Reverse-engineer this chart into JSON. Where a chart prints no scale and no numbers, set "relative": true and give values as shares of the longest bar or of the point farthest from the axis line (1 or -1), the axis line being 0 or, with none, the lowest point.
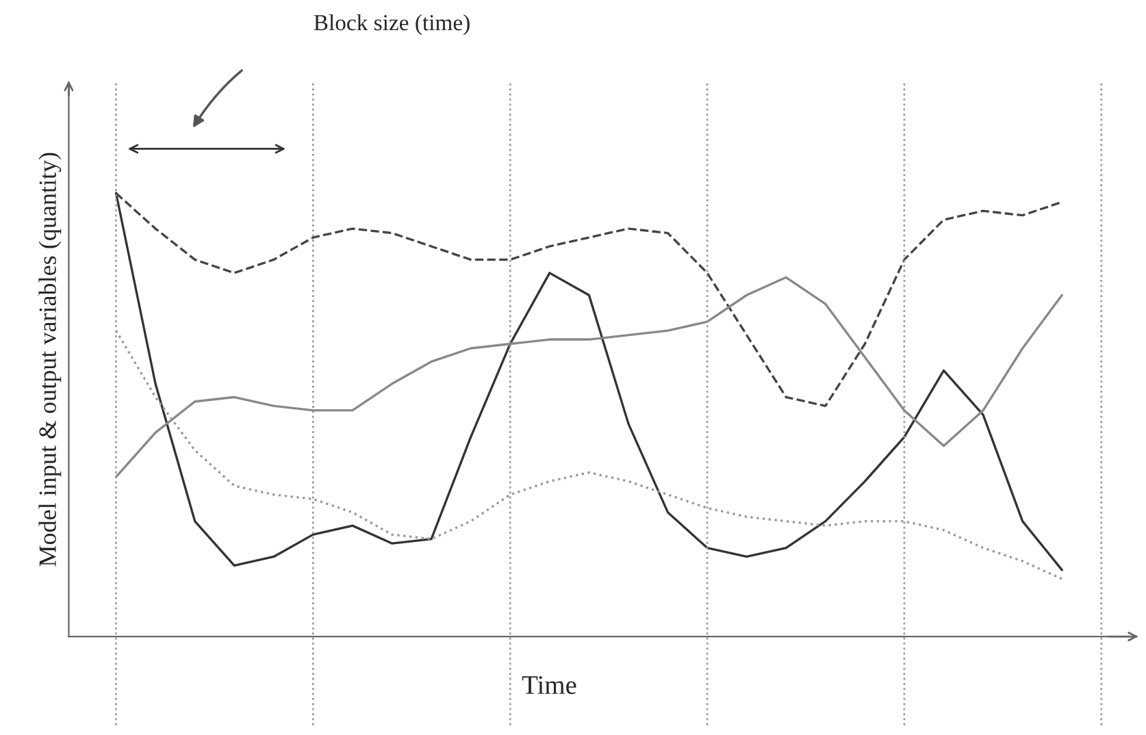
{
  "chart_data": {
    "type": "line",
    "relative": true,
    "xlabel": "Time",
    "ylabel": "Model input & output variables (quantity)",
    "annotations": [
      "Block size (time)"
    ],
    "categories": [
      null,
      null,
      null,
      null,
      null,
      null,
      null,
      null,
      null,
      null,
      null,
      null,
      null,
      null,
      null,
      null,
      null,
      null,
      null,
      null,
      null,
      null,
      null,
      null,
      null,
      null
    ],
    "grid": "x",
    "legend": false,
    "marker": "none",
    "series": [
      {
        "color": "#444444",
        "line_style": "dashed",
        "values": [
          1.0,
          0.92,
          0.85,
          0.82,
          0.85,
          0.9,
          0.92,
          0.91,
          0.88,
          0.85,
          0.85,
          0.88,
          0.9,
          0.92,
          0.91,
          0.82,
          0.68,
          0.54,
          0.52,
          0.66,
          0.85,
          0.94,
          0.96,
          0.95,
          0.98,
          null
        ]
      },
      {
        "color": "#333333",
        "line_style": "solid",
        "values": [
          1.0,
          0.57,
          0.26,
          0.16,
          0.18,
          0.23,
          0.25,
          0.21,
          0.22,
          0.45,
          0.66,
          0.82,
          0.77,
          0.48,
          0.28,
          0.2,
          0.18,
          0.2,
          0.26,
          0.35,
          0.45,
          0.6,
          0.5,
          0.26,
          0.15,
          null
        ]
      },
      {
        "color": "#888888",
        "line_style": "solid",
        "values": [
          0.36,
          0.46,
          0.53,
          0.54,
          0.52,
          0.51,
          0.51,
          0.57,
          0.62,
          0.65,
          0.66,
          0.67,
          0.67,
          0.68,
          0.69,
          0.71,
          0.77,
          0.81,
          0.75,
          0.63,
          0.51,
          0.43,
          0.51,
          0.65,
          0.77,
          null
        ]
      },
      {
        "color": "#999999",
        "line_style": "dotted",
        "values": [
          0.69,
          0.54,
          0.42,
          0.34,
          0.32,
          0.31,
          0.28,
          0.23,
          0.22,
          0.26,
          0.32,
          0.35,
          0.37,
          0.35,
          0.32,
          0.29,
          0.27,
          0.26,
          0.25,
          0.26,
          0.26,
          0.24,
          0.2,
          0.17,
          0.13,
          null
        ]
      }
    ]
  }
}
